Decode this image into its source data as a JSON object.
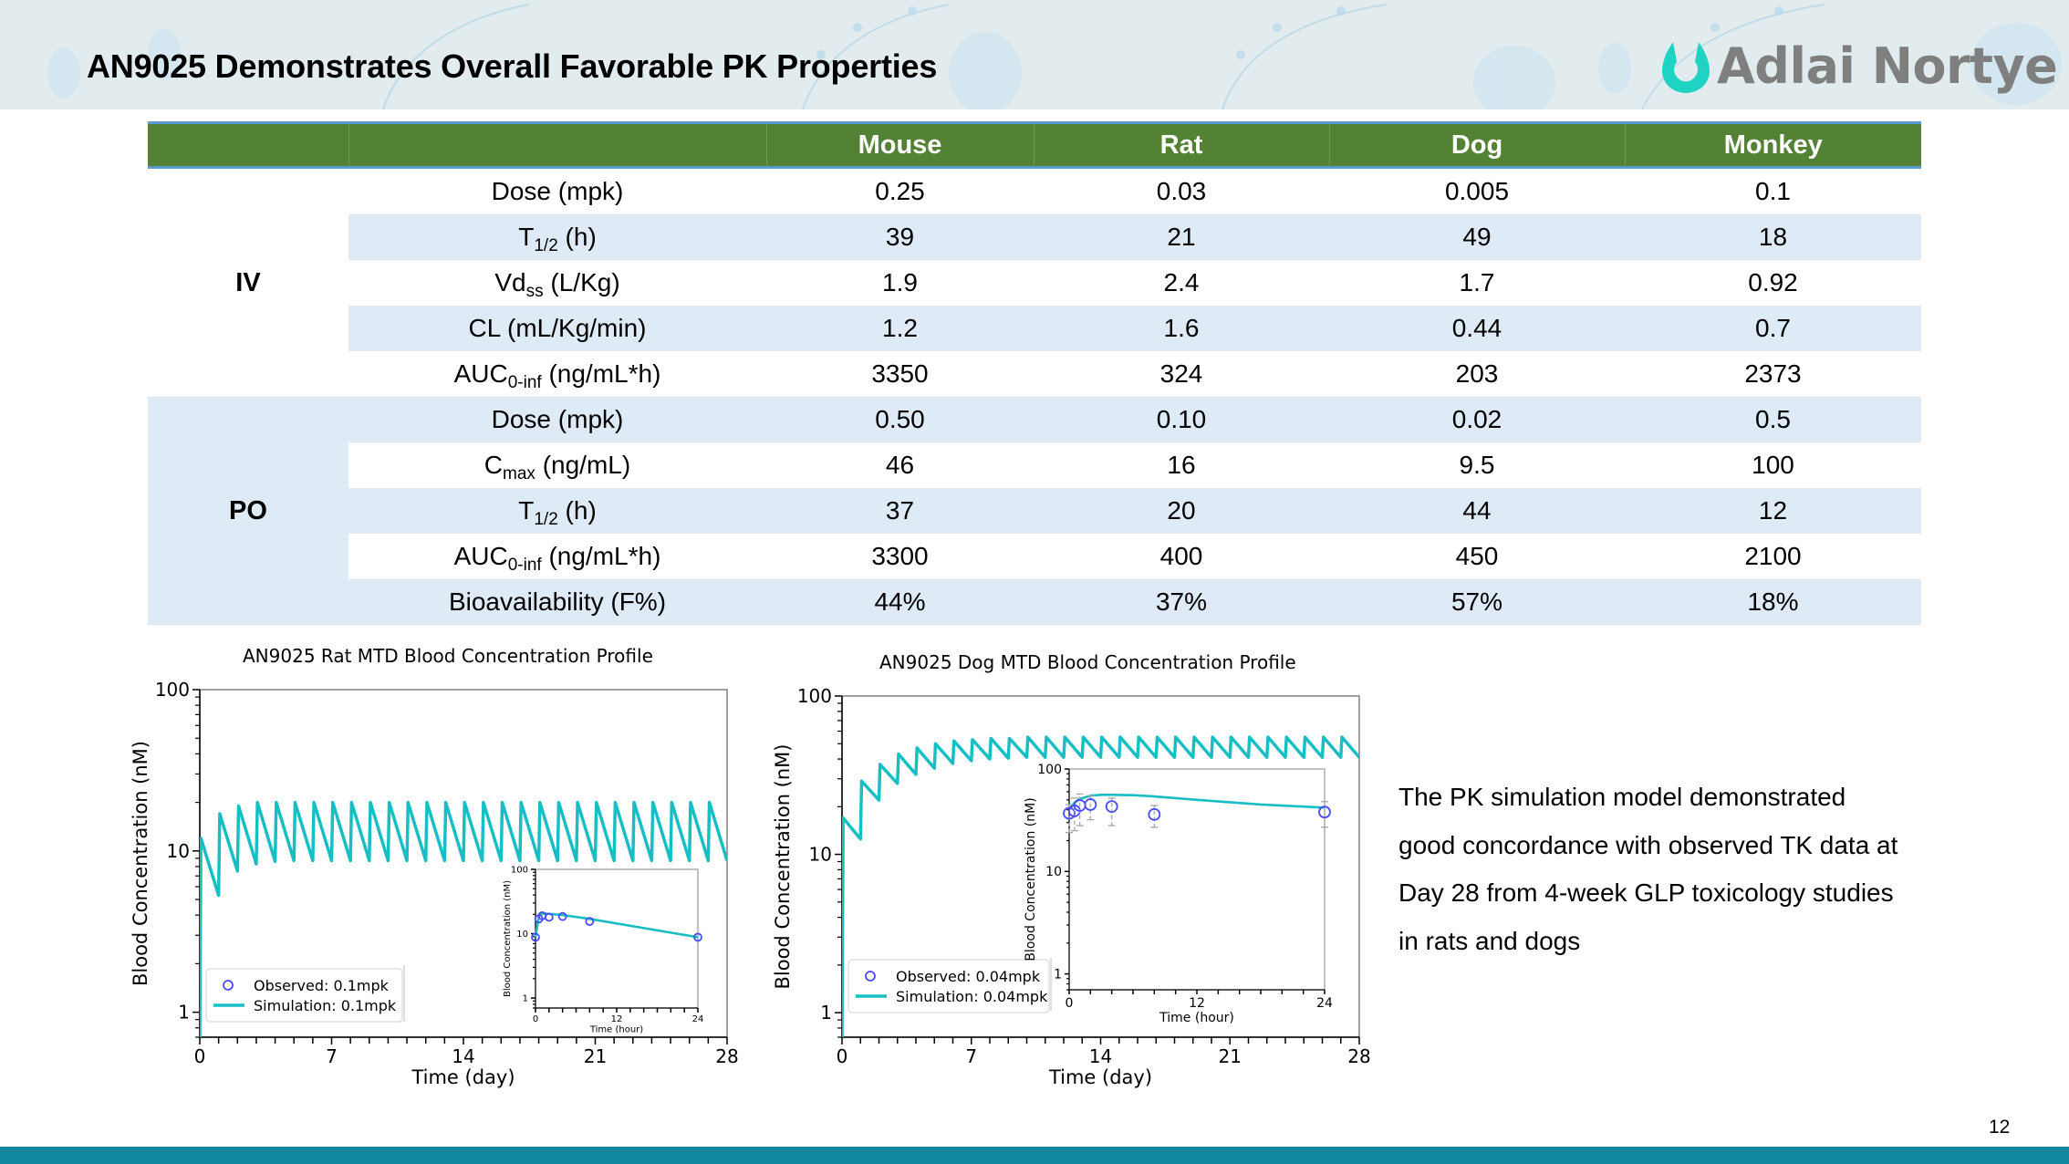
{
  "slide": {
    "title": "AN9025 Demonstrates Overall Favorable PK Properties",
    "logo_text": "Adlai Nortye",
    "page_number": "12",
    "colors": {
      "header_bg": "#e2ebed",
      "table_header": "#548235",
      "table_band": "#deeaf6",
      "logo_accent": "#1fd3c4",
      "footer_bar": "#13869f",
      "sim_line": "#17bfc4",
      "observed_marker": "#4a4cf5"
    }
  },
  "table": {
    "columns": [
      "",
      "",
      "Mouse",
      "Rat",
      "Dog",
      "Monkey"
    ],
    "groups": [
      {
        "name": "IV",
        "rows": [
          {
            "param": "Dose (mpk)",
            "param_main": "Dose",
            "param_sub": "",
            "param_unit": " (mpk)",
            "values": [
              "0.25",
              "0.03",
              "0.005",
              "0.1"
            ]
          },
          {
            "param": "T1/2 (h)",
            "param_main": "T",
            "param_sub": "1/2",
            "param_unit": " (h)",
            "values": [
              "39",
              "21",
              "49",
              "18"
            ]
          },
          {
            "param": "Vdss (L/Kg)",
            "param_main": "Vd",
            "param_sub": "ss",
            "param_unit": " (L/Kg)",
            "values": [
              "1.9",
              "2.4",
              "1.7",
              "0.92"
            ]
          },
          {
            "param": "CL (mL/Kg/min)",
            "param_main": "CL (mL/Kg/min)",
            "param_sub": "",
            "param_unit": "",
            "values": [
              "1.2",
              "1.6",
              "0.44",
              "0.7"
            ]
          },
          {
            "param": "AUC0-inf (ng/mL*h)",
            "param_main": "AUC",
            "param_sub": "0-inf",
            "param_unit": " (ng/mL*h)",
            "values": [
              "3350",
              "324",
              "203",
              "2373"
            ]
          }
        ]
      },
      {
        "name": "PO",
        "rows": [
          {
            "param": "Dose (mpk)",
            "param_main": "Dose",
            "param_sub": "",
            "param_unit": " (mpk)",
            "values": [
              "0.50",
              "0.10",
              "0.02",
              "0.5"
            ]
          },
          {
            "param": "Cmax (ng/mL)",
            "param_main": "C",
            "param_sub": "max",
            "param_unit": " (ng/mL)",
            "values": [
              "46",
              "16",
              "9.5",
              "100"
            ]
          },
          {
            "param": "T1/2 (h)",
            "param_main": "T",
            "param_sub": "1/2",
            "param_unit": " (h)",
            "values": [
              "37",
              "20",
              "44",
              "12"
            ]
          },
          {
            "param": "AUC0-inf (ng/mL*h)",
            "param_main": "AUC",
            "param_sub": "0-inf",
            "param_unit": " (ng/mL*h)",
            "values": [
              "3300",
              "400",
              "450",
              "2100"
            ]
          },
          {
            "param": "Bioavailability (F%)",
            "param_main": "Bioavailability (F%)",
            "param_sub": "",
            "param_unit": "",
            "values": [
              "44%",
              "37%",
              "57%",
              "18%"
            ]
          }
        ]
      }
    ]
  },
  "notes": {
    "lines": [
      "The PK simulation model demonstrated",
      "good concordance with observed TK data at",
      "Day 28 from 4-week GLP toxicology studies",
      "in rats and dogs"
    ]
  },
  "chart_data": [
    {
      "type": "line",
      "title": "AN9025 Rat MTD Blood Concentration Profile",
      "xlabel": "Time (day)",
      "ylabel": "Blood Concentration (nM)",
      "yscale": "log",
      "xlim": [
        0,
        28
      ],
      "ylim": [
        0.7,
        100
      ],
      "xticks": [
        0,
        7,
        14,
        21,
        28
      ],
      "yticks": [
        1,
        10,
        100
      ],
      "legend": {
        "position": "bottom-left",
        "entries": [
          "Observed: 0.1mpk",
          "Simulation: 0.1mpk"
        ]
      },
      "series": [
        {
          "name": "Simulation: 0.1mpk",
          "dosing_interval_day": 1,
          "n_doses": 28,
          "peaks": [
            12,
            17,
            19,
            20,
            20,
            20,
            20,
            20,
            20,
            20,
            20,
            20,
            20,
            20,
            20,
            20,
            20,
            20,
            20,
            20,
            20,
            20,
            20,
            20,
            20,
            20,
            20,
            20
          ],
          "troughs": [
            5.3,
            7.5,
            8.3,
            8.6,
            8.7,
            8.7,
            8.7,
            8.7,
            8.7,
            8.7,
            8.7,
            8.7,
            8.7,
            8.7,
            8.7,
            8.7,
            8.7,
            8.7,
            8.7,
            8.7,
            8.7,
            8.7,
            8.7,
            8.7,
            8.7,
            8.7,
            8.7,
            8.7
          ]
        }
      ],
      "inset": {
        "xlabel": "Time (hour)",
        "ylabel": "Blood Concentration (nM)",
        "yscale": "log",
        "xlim": [
          0,
          24
        ],
        "ylim": [
          0.7,
          100
        ],
        "xticks": [
          0,
          12,
          24
        ],
        "yticks": [
          1,
          10,
          100
        ],
        "observed": {
          "x": [
            0,
            0.5,
            1,
            2,
            4,
            8,
            24
          ],
          "y": [
            8.8,
            17,
            19,
            18,
            18.5,
            15.5,
            8.8
          ]
        },
        "simulation": {
          "x": [
            0,
            0.5,
            1,
            2,
            4,
            8,
            24
          ],
          "y": [
            8.8,
            19,
            20.5,
            20.3,
            19.5,
            17,
            8.8
          ]
        }
      }
    },
    {
      "type": "line",
      "title": "AN9025 Dog MTD Blood Concentration Profile",
      "xlabel": "Time (day)",
      "ylabel": "Blood Concentration (nM)",
      "yscale": "log",
      "xlim": [
        0,
        28
      ],
      "ylim": [
        0.7,
        100
      ],
      "xticks": [
        0,
        7,
        14,
        21,
        28
      ],
      "yticks": [
        1,
        10,
        100
      ],
      "legend": {
        "position": "bottom-left",
        "entries": [
          "Observed: 0.04mpk",
          "Simulation: 0.04mpk"
        ]
      },
      "series": [
        {
          "name": "Simulation: 0.04mpk",
          "dosing_interval_day": 1,
          "n_doses": 28,
          "peaks": [
            17,
            29,
            37,
            43,
            47,
            50,
            52,
            53,
            54,
            54,
            55,
            55,
            55,
            55,
            55,
            55,
            55,
            55,
            55,
            55,
            55,
            55,
            55,
            55,
            55,
            55,
            55,
            55
          ],
          "troughs": [
            12.5,
            22,
            28,
            32,
            35,
            37.5,
            39,
            40,
            40.5,
            41,
            41,
            41,
            41,
            41,
            41,
            41,
            41,
            41,
            41,
            41,
            41,
            41,
            41,
            41,
            41,
            41,
            41,
            41
          ]
        }
      ],
      "inset": {
        "xlabel": "Time (hour)",
        "ylabel": "Blood Concentration (nM)",
        "yscale": "log",
        "xlim": [
          0,
          24
        ],
        "ylim": [
          0.7,
          100
        ],
        "xticks": [
          0,
          12,
          24
        ],
        "yticks": [
          1,
          10,
          100
        ],
        "observed": {
          "x": [
            0,
            0.5,
            1,
            2,
            4,
            8,
            24
          ],
          "y": [
            37,
            39,
            44,
            45,
            43,
            36,
            38
          ],
          "err_low": [
            24,
            25,
            28,
            32,
            28,
            27,
            27
          ],
          "err_high": [
            45,
            52,
            57,
            55,
            52,
            44,
            48
          ]
        },
        "simulation": {
          "x": [
            0,
            0.5,
            1,
            2,
            3,
            4,
            6,
            8,
            12,
            18,
            24
          ],
          "y": [
            40,
            47,
            51,
            55,
            56,
            56,
            55.5,
            54,
            50,
            45,
            42
          ]
        }
      }
    }
  ]
}
